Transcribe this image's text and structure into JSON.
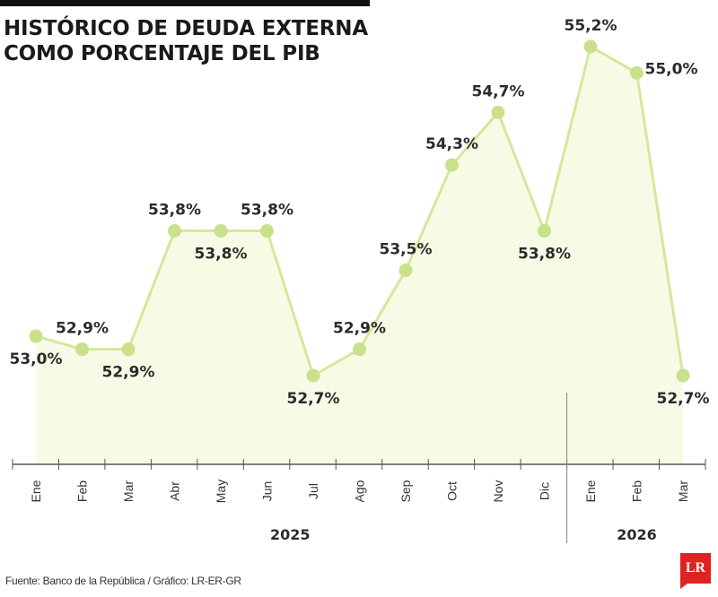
{
  "title_line1": "HISTÓRICO DE DEUDA EXTERNA",
  "title_line2": "COMO PORCENTAJE DEL PIB",
  "source": "Fuente: Banco de la República / Gráfico: LR-ER-GR",
  "logo": "LR",
  "colors": {
    "line": "#d4e89c",
    "marker": "#c9e08c",
    "fill": "#f7fbe6",
    "axis": "#555555"
  },
  "chart_data": {
    "type": "line",
    "title": "HISTÓRICO DE DEUDA EXTERNA COMO PORCENTAJE DEL PIB",
    "categories": [
      "Ene",
      "Feb",
      "Mar",
      "Abr",
      "May",
      "Jun",
      "Jul",
      "Ago",
      "Sep",
      "Oct",
      "Nov",
      "Dic",
      "Ene",
      "Feb",
      "Mar"
    ],
    "years": [
      {
        "label": "2025",
        "from": 0,
        "to": 11
      },
      {
        "label": "2026",
        "from": 12,
        "to": 14
      }
    ],
    "values": [
      53.0,
      52.9,
      52.9,
      53.8,
      53.8,
      53.8,
      52.7,
      52.9,
      53.5,
      54.3,
      54.7,
      53.8,
      55.2,
      55.0,
      52.7
    ],
    "labels": [
      "53,0%",
      "52,9%",
      "52,9%",
      "53,8%",
      "53,8%",
      "53,8%",
      "52,7%",
      "52,9%",
      "53,5%",
      "54,3%",
      "54,7%",
      "53,8%",
      "55,2%",
      "55,0%",
      "52,7%"
    ],
    "label_side": [
      "below",
      "above",
      "below",
      "above",
      "below",
      "above",
      "below",
      "above",
      "above",
      "above",
      "above",
      "below",
      "above",
      "right",
      "below"
    ],
    "ylim": [
      52.7,
      55.2
    ],
    "grid": false,
    "legend": "none"
  }
}
